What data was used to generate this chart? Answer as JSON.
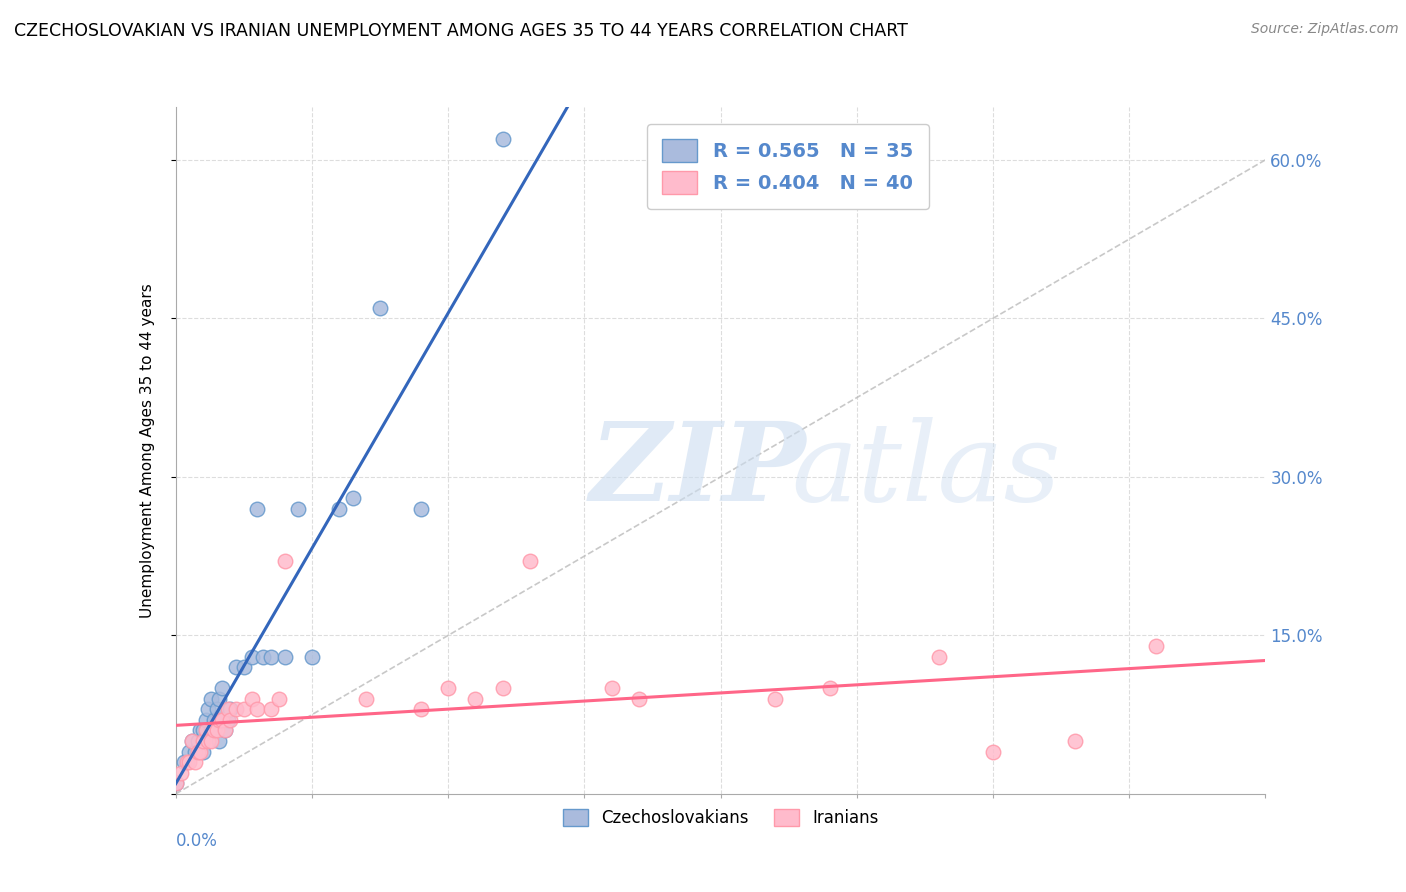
{
  "title": "CZECHOSLOVAKIAN VS IRANIAN UNEMPLOYMENT AMONG AGES 35 TO 44 YEARS CORRELATION CHART",
  "source": "Source: ZipAtlas.com",
  "ylabel": "Unemployment Among Ages 35 to 44 years",
  "yticks": [
    0.0,
    0.15,
    0.3,
    0.45,
    0.6
  ],
  "ytick_labels": [
    "",
    "15.0%",
    "30.0%",
    "45.0%",
    "60.0%"
  ],
  "xlim": [
    0.0,
    0.4
  ],
  "ylim": [
    0.0,
    0.65
  ],
  "legend_bottom_czechoslovakian": "Czechoslovakians",
  "legend_bottom_iranian": "Iranians",
  "color_blue_fill": "#AABBDD",
  "color_pink_fill": "#FFBBCC",
  "color_blue_edge": "#6699CC",
  "color_pink_edge": "#FF99AA",
  "color_blue_line": "#3366BB",
  "color_pink_line": "#FF6688",
  "color_diag": "#BBBBBB",
  "color_grid": "#DDDDDD",
  "color_right_ytick": "#5588CC",
  "R_czech": 0.565,
  "N_czech": 35,
  "R_iran": 0.404,
  "N_iran": 40,
  "czechoslovakian_x": [
    0.0,
    0.003,
    0.005,
    0.006,
    0.007,
    0.008,
    0.009,
    0.01,
    0.01,
    0.011,
    0.012,
    0.013,
    0.013,
    0.014,
    0.015,
    0.016,
    0.016,
    0.017,
    0.018,
    0.019,
    0.02,
    0.022,
    0.025,
    0.028,
    0.03,
    0.032,
    0.035,
    0.04,
    0.045,
    0.05,
    0.06,
    0.065,
    0.075,
    0.09,
    0.12
  ],
  "czechoslovakian_y": [
    0.01,
    0.03,
    0.04,
    0.05,
    0.04,
    0.05,
    0.06,
    0.06,
    0.04,
    0.07,
    0.08,
    0.06,
    0.09,
    0.07,
    0.08,
    0.09,
    0.05,
    0.1,
    0.06,
    0.07,
    0.08,
    0.12,
    0.12,
    0.13,
    0.27,
    0.13,
    0.13,
    0.13,
    0.27,
    0.13,
    0.27,
    0.28,
    0.46,
    0.27,
    0.62
  ],
  "iranian_x": [
    0.0,
    0.002,
    0.004,
    0.005,
    0.006,
    0.007,
    0.008,
    0.009,
    0.01,
    0.011,
    0.012,
    0.013,
    0.014,
    0.015,
    0.016,
    0.017,
    0.018,
    0.019,
    0.02,
    0.022,
    0.025,
    0.028,
    0.03,
    0.035,
    0.038,
    0.04,
    0.07,
    0.09,
    0.1,
    0.11,
    0.12,
    0.13,
    0.16,
    0.17,
    0.22,
    0.24,
    0.28,
    0.3,
    0.33,
    0.36
  ],
  "iranian_y": [
    0.01,
    0.02,
    0.03,
    0.03,
    0.05,
    0.03,
    0.04,
    0.04,
    0.05,
    0.06,
    0.05,
    0.05,
    0.06,
    0.06,
    0.07,
    0.07,
    0.06,
    0.08,
    0.07,
    0.08,
    0.08,
    0.09,
    0.08,
    0.08,
    0.09,
    0.22,
    0.09,
    0.08,
    0.1,
    0.09,
    0.1,
    0.22,
    0.1,
    0.09,
    0.09,
    0.1,
    0.13,
    0.04,
    0.05,
    0.14
  ]
}
